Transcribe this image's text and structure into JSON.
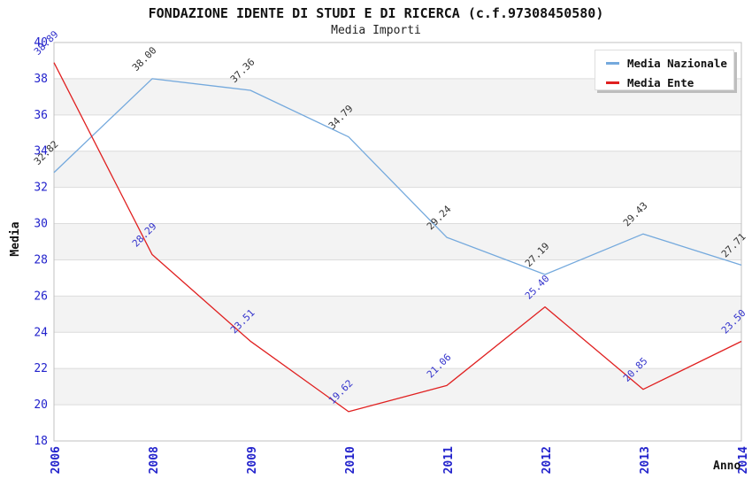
{
  "chart_data": {
    "type": "line",
    "title": "FONDAZIONE IDENTE DI STUDI E DI RICERCA (c.f.97308450580)",
    "subtitle": "Media Importi",
    "xlabel": "Anno",
    "ylabel": "Media",
    "categories": [
      "2006",
      "2008",
      "2009",
      "2010",
      "2011",
      "2012",
      "2013",
      "2014"
    ],
    "series": [
      {
        "name": "Media Nazionale",
        "color": "#74a9dd",
        "label_color": "#333333",
        "values": [
          32.82,
          38.0,
          37.36,
          34.79,
          29.24,
          27.19,
          29.43,
          27.71
        ]
      },
      {
        "name": "Media Ente",
        "color": "#e02020",
        "label_color": "#3333cc",
        "values": [
          38.89,
          28.29,
          23.51,
          19.62,
          21.06,
          25.4,
          20.85,
          23.5
        ]
      }
    ],
    "ylim": [
      18,
      40
    ],
    "y_ticks": [
      18,
      20,
      22,
      24,
      26,
      28,
      30,
      32,
      34,
      36,
      38,
      40
    ],
    "grid": "horizontal",
    "band_fill": "#f3f3f3",
    "gridline_color": "#dcdcdc",
    "frame_color": "#c0c0c0",
    "tick_color": "#2222cc",
    "legend_position": "top-right",
    "value_label_decimals": 2
  }
}
